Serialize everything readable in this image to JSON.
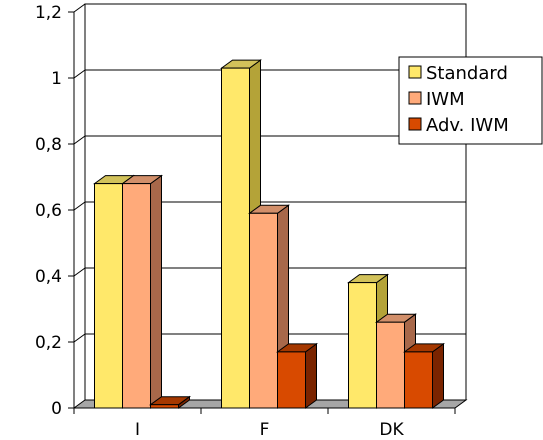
{
  "chart_data": {
    "type": "bar",
    "categories": [
      "I",
      "F",
      "DK"
    ],
    "series": [
      {
        "name": "Standard",
        "values": [
          0.68,
          1.03,
          0.38
        ],
        "color": "#ffe86a",
        "side_color": "#b4a338",
        "top_color": "#d2c25a"
      },
      {
        "name": "IWM",
        "values": [
          0.68,
          0.59,
          0.26
        ],
        "color": "#ffaa7a",
        "side_color": "#a8684a",
        "top_color": "#d28f6a"
      },
      {
        "name": "Adv. IWM",
        "values": [
          0.01,
          0.17,
          0.17
        ],
        "color": "#d84a00",
        "side_color": "#7a2400",
        "top_color": "#a53800"
      }
    ],
    "yticks": [
      "0",
      "0,2",
      "0,4",
      "0,6",
      "0,8",
      "1",
      "1,2"
    ],
    "ylim": [
      0,
      1.2
    ],
    "grid": true,
    "legend_position": "right"
  }
}
